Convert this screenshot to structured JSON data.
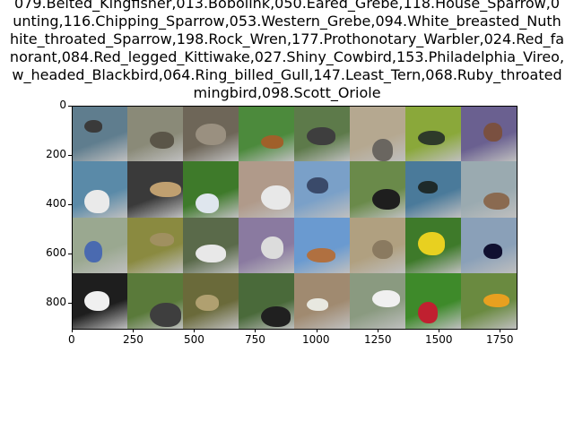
{
  "title_lines": [
    "079.Belted_Kingfisher,013.Bobolink,050.Eared_Grebe,118.House_Sparrow,0",
    "unting,116.Chipping_Sparrow,053.Western_Grebe,094.White_breasted_Nuth",
    "hite_throated_Sparrow,198.Rock_Wren,177.Prothonotary_Warbler,024.Red_fa",
    "norant,084.Red_legged_Kittiwake,027.Shiny_Cowbird,153.Philadelphia_Vireo,",
    "w_headed_Blackbird,064.Ring_billed_Gull,147.Least_Tern,068.Ruby_throated",
    "mingbird,098.Scott_Oriole"
  ],
  "axes": {
    "x_ticks": [
      "0",
      "250",
      "500",
      "750",
      "1000",
      "1250",
      "1500",
      "1750"
    ],
    "y_ticks": [
      "0",
      "200",
      "400",
      "600",
      "800"
    ]
  },
  "tiles": [
    {
      "bg": "#5f7d8e",
      "fg": "#3a3a3a"
    },
    {
      "bg": "#8a8a78",
      "fg": "#5a5548"
    },
    {
      "bg": "#6e6658",
      "fg": "#9a9080"
    },
    {
      "bg": "#4c8a3c",
      "fg": "#a0602a"
    },
    {
      "bg": "#5d7a4a",
      "fg": "#3e3e3e"
    },
    {
      "bg": "#b5a890",
      "fg": "#6a6660"
    },
    {
      "bg": "#8aa83a",
      "fg": "#2e3a2a"
    },
    {
      "bg": "#6a6090",
      "fg": "#7a5040"
    },
    {
      "bg": "#5a8aa8",
      "fg": "#eaeaea"
    },
    {
      "bg": "#3a3a3a",
      "fg": "#c0a070"
    },
    {
      "bg": "#3e7a2a",
      "fg": "#dfe6ee"
    },
    {
      "bg": "#b09a8a",
      "fg": "#e8e8e8"
    },
    {
      "bg": "#7aa0c8",
      "fg": "#3a4a6a"
    },
    {
      "bg": "#6a8a4a",
      "fg": "#1e1e1e"
    },
    {
      "bg": "#4a7a9a",
      "fg": "#1e2a2a"
    },
    {
      "bg": "#9aaab0",
      "fg": "#8a6a50"
    },
    {
      "bg": "#9aa890",
      "fg": "#4a6ab0"
    },
    {
      "bg": "#8a8a40",
      "fg": "#a09060"
    },
    {
      "bg": "#5a6a4a",
      "fg": "#e8e8e8"
    },
    {
      "bg": "#8a7aa0",
      "fg": "#dcdcdc"
    },
    {
      "bg": "#6a9ad0",
      "fg": "#b07040"
    },
    {
      "bg": "#b0a080",
      "fg": "#8a7a60"
    },
    {
      "bg": "#3e7a2a",
      "fg": "#e8d020"
    },
    {
      "bg": "#8aa0b8",
      "fg": "#101030"
    },
    {
      "bg": "#1e1e1e",
      "fg": "#f0f0f0"
    },
    {
      "bg": "#5a7a3a",
      "fg": "#3e3e3e"
    },
    {
      "bg": "#6a6a3a",
      "fg": "#b0a070"
    },
    {
      "bg": "#4a6a3a",
      "fg": "#202020"
    },
    {
      "bg": "#a08a70",
      "fg": "#e8e8e0"
    },
    {
      "bg": "#8a9a80",
      "fg": "#f0f0f0"
    },
    {
      "bg": "#3e8a2a",
      "fg": "#c02030"
    },
    {
      "bg": "#6a8a40",
      "fg": "#e8a020"
    }
  ]
}
